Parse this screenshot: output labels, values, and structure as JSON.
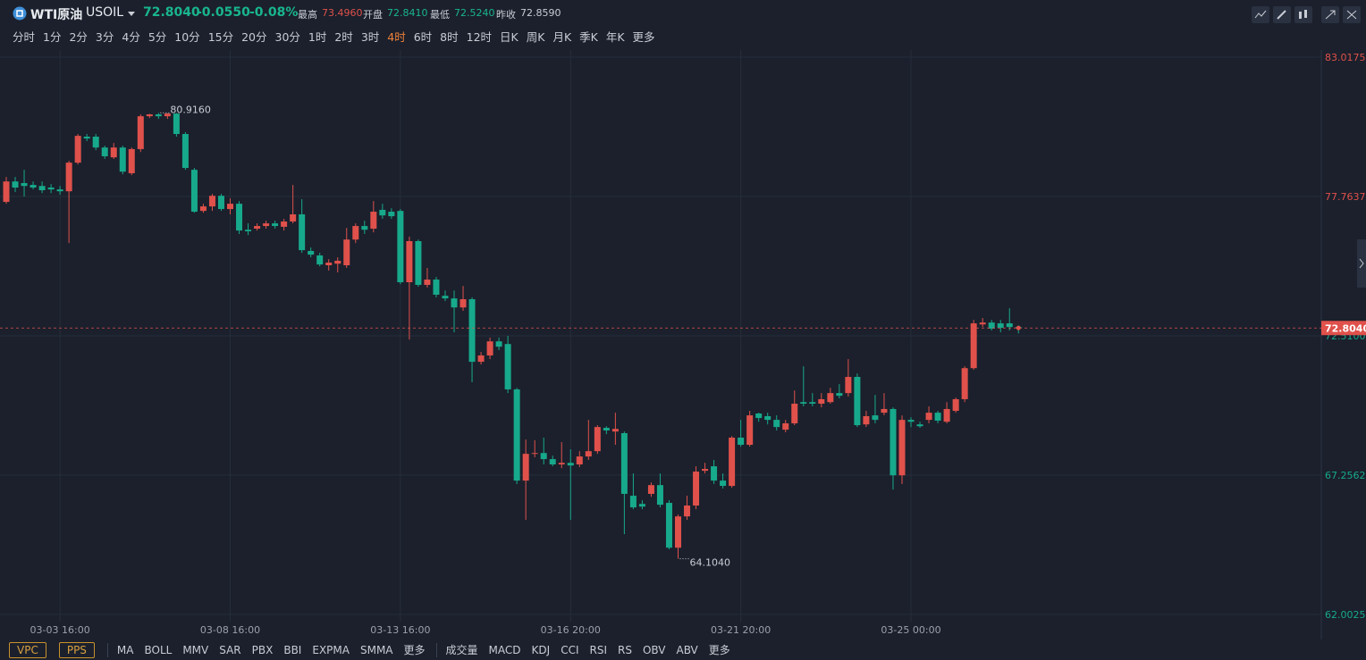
{
  "header": {
    "title": "WTI原油",
    "symbol": "USOIL",
    "price": "72.8040",
    "change": "-0.0550",
    "change_pct": "-0.08%",
    "stats": [
      {
        "label": "最高",
        "value": "73.4960"
      },
      {
        "label": "开盘",
        "value": "72.8410"
      },
      {
        "label": "最低",
        "value": "72.5240"
      },
      {
        "label": "昨收",
        "value": "72.8590"
      }
    ]
  },
  "periods": [
    "分时",
    "1分",
    "2分",
    "3分",
    "4分",
    "5分",
    "10分",
    "15分",
    "20分",
    "30分",
    "1时",
    "2时",
    "3时",
    "4时",
    "6时",
    "8时",
    "12时",
    "日K",
    "周K",
    "月K",
    "季K",
    "年K",
    "更多"
  ],
  "active_period": 13,
  "indicators": {
    "buttons": [
      "VPC",
      "PPS"
    ],
    "main": [
      "MA",
      "BOLL",
      "MMV",
      "SAR",
      "PBX",
      "BBI",
      "EXPMA",
      "SMMA",
      "更多"
    ],
    "sub": [
      "成交量",
      "MACD",
      "KDJ",
      "CCI",
      "RSI",
      "RS",
      "OBV",
      "ABV",
      "更多"
    ]
  },
  "chart_data": {
    "type": "candlestick",
    "up_color": "#e0514b",
    "down_color": "#17a98b",
    "grid": true,
    "categories": [
      null,
      null,
      null,
      null,
      null,
      null,
      "03-03 16:00",
      null,
      null,
      null,
      null,
      null,
      null,
      null,
      null,
      null,
      null,
      null,
      null,
      null,
      null,
      null,
      null,
      null,
      null,
      "03-08 16:00",
      null,
      null,
      null,
      null,
      null,
      null,
      null,
      null,
      null,
      null,
      null,
      null,
      null,
      null,
      null,
      null,
      null,
      null,
      "03-13 16:00",
      null,
      null,
      null,
      null,
      null,
      null,
      null,
      null,
      null,
      null,
      null,
      null,
      null,
      null,
      null,
      null,
      null,
      null,
      "03-16 20:00",
      null,
      null,
      null,
      null,
      null,
      null,
      null,
      null,
      null,
      null,
      null,
      null,
      null,
      null,
      null,
      null,
      null,
      null,
      "03-21 20:00",
      null,
      null,
      null,
      null,
      null,
      null,
      null,
      null,
      null,
      null,
      null,
      null,
      null,
      null,
      null,
      null,
      null,
      null,
      "03-25 00:00",
      null,
      null,
      null,
      null,
      null,
      null,
      null,
      null,
      null,
      null,
      null,
      null
    ],
    "open": [
      77.56,
      78.33,
      78.27,
      78.2,
      78.16,
      78.1,
      78.03,
      77.96,
      79.04,
      80.02,
      80.02,
      79.61,
      79.24,
      79.61,
      78.64,
      79.55,
      80.79,
      80.86,
      80.79,
      80.89,
      80.12,
      78.77,
      77.22,
      77.39,
      77.79,
      77.29,
      77.49,
      76.51,
      76.55,
      76.65,
      76.75,
      76.62,
      76.82,
      77.09,
      75.71,
      75.54,
      75.17,
      75.23,
      75.17,
      76.14,
      76.65,
      76.55,
      77.26,
      77.19,
      77.22,
      74.53,
      76.08,
      74.43,
      74.63,
      74.02,
      73.92,
      73.58,
      73.89,
      71.53,
      71.77,
      72.3,
      72.2,
      70.49,
      67.05,
      68.06,
      68.09,
      67.86,
      67.66,
      67.72,
      67.66,
      67.96,
      68.16,
      69.04,
      68.9,
      68.84,
      66.48,
      66.17,
      66.55,
      66.88,
      66.21,
      64.52,
      65.7,
      66.11,
      67.42,
      67.59,
      67.05,
      66.85,
      68.67,
      68.4,
      69.58,
      69.48,
      69.34,
      68.97,
      69.21,
      70.01,
      70.01,
      69.95,
      70.01,
      70.35,
      70.35,
      70.96,
      69.17,
      69.51,
      69.61,
      69.75,
      67.25,
      69.34,
      69.17,
      69.34,
      69.61,
      69.27,
      69.68,
      70.12,
      71.29,
      72.94,
      73.01,
      72.98,
      72.98,
      72.841
    ],
    "high": [
      78.5,
      78.5,
      78.77,
      78.33,
      78.33,
      78.23,
      78.16,
      79.11,
      80.12,
      80.12,
      80.12,
      79.68,
      79.78,
      79.68,
      79.61,
      80.86,
      80.88,
      80.916,
      80.9,
      80.91,
      80.19,
      78.84,
      77.49,
      77.86,
      77.86,
      77.69,
      77.59,
      76.75,
      76.75,
      76.85,
      76.85,
      76.92,
      78.2,
      77.66,
      75.84,
      75.64,
      75.4,
      75.47,
      76.58,
      76.75,
      76.85,
      77.59,
      77.49,
      77.32,
      77.29,
      76.25,
      76.14,
      75.07,
      74.73,
      74.22,
      74.22,
      74.39,
      73.96,
      71.9,
      72.44,
      72.44,
      72.51,
      70.55,
      68.6,
      68.57,
      68.67,
      67.99,
      68.5,
      68.23,
      68.16,
      69.34,
      69.14,
      69.1,
      69.61,
      68.9,
      67.32,
      66.31,
      66.98,
      67.32,
      66.31,
      65.77,
      66.48,
      67.59,
      67.72,
      67.83,
      67.32,
      68.73,
      69.34,
      69.68,
      69.61,
      69.61,
      69.51,
      69.34,
      70.45,
      71.36,
      70.35,
      70.35,
      70.55,
      70.69,
      71.63,
      71.09,
      69.68,
      70.28,
      70.35,
      69.81,
      69.51,
      69.44,
      69.27,
      69.85,
      69.68,
      70.01,
      70.18,
      71.36,
      73.11,
      73.18,
      73.11,
      73.11,
      73.55,
      72.9
    ],
    "low": [
      77.49,
      77.93,
      77.76,
      78.03,
      77.89,
      77.89,
      77.83,
      76.01,
      78.97,
      79.85,
      79.51,
      79.18,
      79.18,
      78.6,
      78.57,
      79.44,
      80.72,
      80.69,
      80.69,
      80.02,
      78.77,
      77.15,
      77.15,
      77.22,
      77.22,
      77.09,
      76.35,
      76.31,
      76.48,
      76.55,
      76.55,
      76.48,
      76.75,
      75.64,
      75.47,
      75.13,
      74.97,
      74.9,
      75.07,
      76.01,
      76.35,
      76.41,
      76.92,
      76.92,
      74.46,
      72.37,
      74.36,
      74.33,
      73.96,
      73.82,
      72.64,
      73.45,
      70.76,
      71.43,
      71.63,
      71.97,
      70.35,
      66.92,
      65.57,
      67.93,
      67.66,
      67.59,
      67.52,
      65.57,
      67.56,
      67.83,
      68.06,
      68.8,
      68.4,
      65.03,
      65.97,
      65.97,
      66.44,
      66.04,
      64.46,
      64.104,
      65.57,
      65.97,
      67.32,
      66.92,
      66.75,
      66.78,
      68.33,
      68.33,
      69.27,
      69.17,
      68.94,
      68.87,
      69.14,
      69.85,
      69.85,
      69.81,
      69.95,
      70.15,
      70.22,
      69.07,
      69.07,
      69.21,
      69.51,
      66.71,
      66.92,
      69.07,
      69.04,
      69.21,
      69.21,
      69.21,
      69.61,
      70.01,
      71.23,
      72.84,
      72.71,
      72.64,
      72.71,
      72.6
    ],
    "close": [
      78.33,
      78.1,
      78.16,
      78.1,
      78.0,
      78.03,
      77.96,
      79.04,
      80.05,
      79.95,
      79.61,
      79.28,
      79.61,
      78.7,
      79.55,
      80.79,
      80.86,
      80.79,
      80.89,
      80.12,
      78.84,
      77.19,
      77.39,
      77.79,
      77.29,
      77.49,
      76.48,
      76.45,
      76.65,
      76.75,
      76.65,
      76.82,
      77.09,
      75.74,
      75.57,
      75.2,
      75.27,
      75.34,
      76.14,
      76.65,
      76.51,
      77.19,
      77.05,
      77.02,
      74.53,
      76.08,
      74.43,
      74.63,
      74.06,
      73.92,
      73.58,
      73.89,
      71.53,
      71.77,
      72.3,
      72.1,
      70.49,
      67.05,
      68.06,
      68.09,
      67.86,
      67.66,
      67.72,
      67.62,
      67.96,
      68.16,
      69.07,
      68.94,
      69.0,
      66.55,
      66.04,
      66.07,
      66.88,
      66.14,
      64.52,
      65.7,
      66.11,
      67.39,
      67.49,
      67.05,
      66.85,
      68.67,
      68.4,
      69.51,
      69.41,
      69.34,
      69.07,
      69.21,
      69.95,
      69.95,
      69.95,
      70.12,
      70.35,
      70.25,
      70.96,
      69.14,
      69.48,
      69.34,
      69.75,
      67.25,
      69.34,
      69.27,
      69.1,
      69.61,
      69.31,
      69.75,
      70.12,
      71.29,
      72.98,
      73.01,
      72.78,
      72.81,
      72.84,
      72.804
    ],
    "ylim": [
      62.0025,
      83.0175
    ],
    "yticks": [
      62.0025,
      67.2562,
      {
        "value": 72.51,
        "label": "72.5100"
      },
      77.7637,
      83.0175
    ],
    "annotations": [
      {
        "value": 80.916,
        "label": "80.9160"
      },
      {
        "value": 64.104,
        "label": "64.1040"
      }
    ]
  }
}
